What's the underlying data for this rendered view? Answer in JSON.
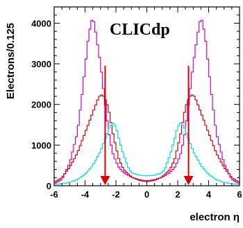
{
  "chart_data": {
    "type": "line",
    "title": "CLICdp",
    "xlabel": "electron η",
    "ylabel": "Electrons/0.125",
    "xlim": [
      -6,
      6
    ],
    "ylim": [
      0,
      4400
    ],
    "xticks": [
      -6,
      -4,
      -2,
      0,
      2,
      4,
      6
    ],
    "yticks": [
      0,
      1000,
      2000,
      3000,
      4000
    ],
    "grid": false,
    "style": "step",
    "series": [
      {
        "color": "#cc00cc",
        "x": [
          -6,
          -5.5,
          -5,
          -4.5,
          -4.2,
          -4,
          -3.8,
          -3.6,
          -3.5,
          -3.4,
          -3.2,
          -3,
          -2.8,
          -2.6,
          -2.4,
          -2.2,
          -2,
          -1.8,
          -1.5,
          -1,
          -0.5,
          0,
          0.5,
          1,
          1.5,
          1.8,
          2,
          2.2,
          2.4,
          2.6,
          2.8,
          3,
          3.2,
          3.4,
          3.5,
          3.6,
          3.8,
          4,
          4.2,
          4.5,
          5,
          5.5,
          6
        ],
        "y": [
          50,
          150,
          550,
          1300,
          2200,
          2900,
          3600,
          4050,
          4100,
          4000,
          3500,
          3000,
          2350,
          1700,
          1150,
          800,
          600,
          450,
          320,
          210,
          150,
          120,
          150,
          210,
          320,
          450,
          600,
          800,
          1150,
          1700,
          2350,
          3000,
          3500,
          4000,
          4100,
          4050,
          3600,
          2900,
          2200,
          1300,
          550,
          150,
          50
        ]
      },
      {
        "color": "#dd0000",
        "x": [
          -6,
          -5.5,
          -5,
          -4.5,
          -4,
          -3.5,
          -3.2,
          -3,
          -2.8,
          -2.6,
          -2.4,
          -2.2,
          -2,
          -1.8,
          -1.5,
          -1,
          -0.5,
          0,
          0.5,
          1,
          1.5,
          1.8,
          2,
          2.2,
          2.4,
          2.6,
          2.8,
          3,
          3.2,
          3.5,
          4,
          4.5,
          5,
          5.5,
          6
        ],
        "y": [
          80,
          200,
          450,
          800,
          1300,
          1800,
          2100,
          2250,
          2200,
          2050,
          1750,
          1300,
          950,
          650,
          400,
          220,
          130,
          100,
          130,
          220,
          400,
          650,
          950,
          1300,
          1750,
          2050,
          2200,
          2250,
          2100,
          1800,
          1300,
          800,
          450,
          200,
          80
        ]
      },
      {
        "color": "#00dddd",
        "x": [
          -6,
          -5.5,
          -5,
          -4.5,
          -4,
          -3.5,
          -3,
          -2.6,
          -2.4,
          -2.2,
          -2,
          -1.8,
          -1.5,
          -1.2,
          -1,
          -0.5,
          0,
          0.5,
          1,
          1.2,
          1.5,
          1.8,
          2,
          2.2,
          2.4,
          2.6,
          3,
          3.5,
          4,
          4.5,
          5,
          5.5,
          6
        ],
        "y": [
          30,
          50,
          80,
          150,
          280,
          500,
          850,
          1250,
          1450,
          1550,
          1450,
          1150,
          750,
          450,
          320,
          260,
          240,
          260,
          320,
          450,
          750,
          1150,
          1450,
          1550,
          1450,
          1250,
          850,
          500,
          280,
          150,
          80,
          50,
          30
        ]
      }
    ],
    "annotations": [
      {
        "type": "arrow",
        "color": "#dd0000",
        "x": -2.7,
        "y_from": 2950,
        "y_to": 0
      },
      {
        "type": "arrow",
        "color": "#dd0000",
        "x": 2.7,
        "y_from": 2950,
        "y_to": 0
      }
    ]
  }
}
